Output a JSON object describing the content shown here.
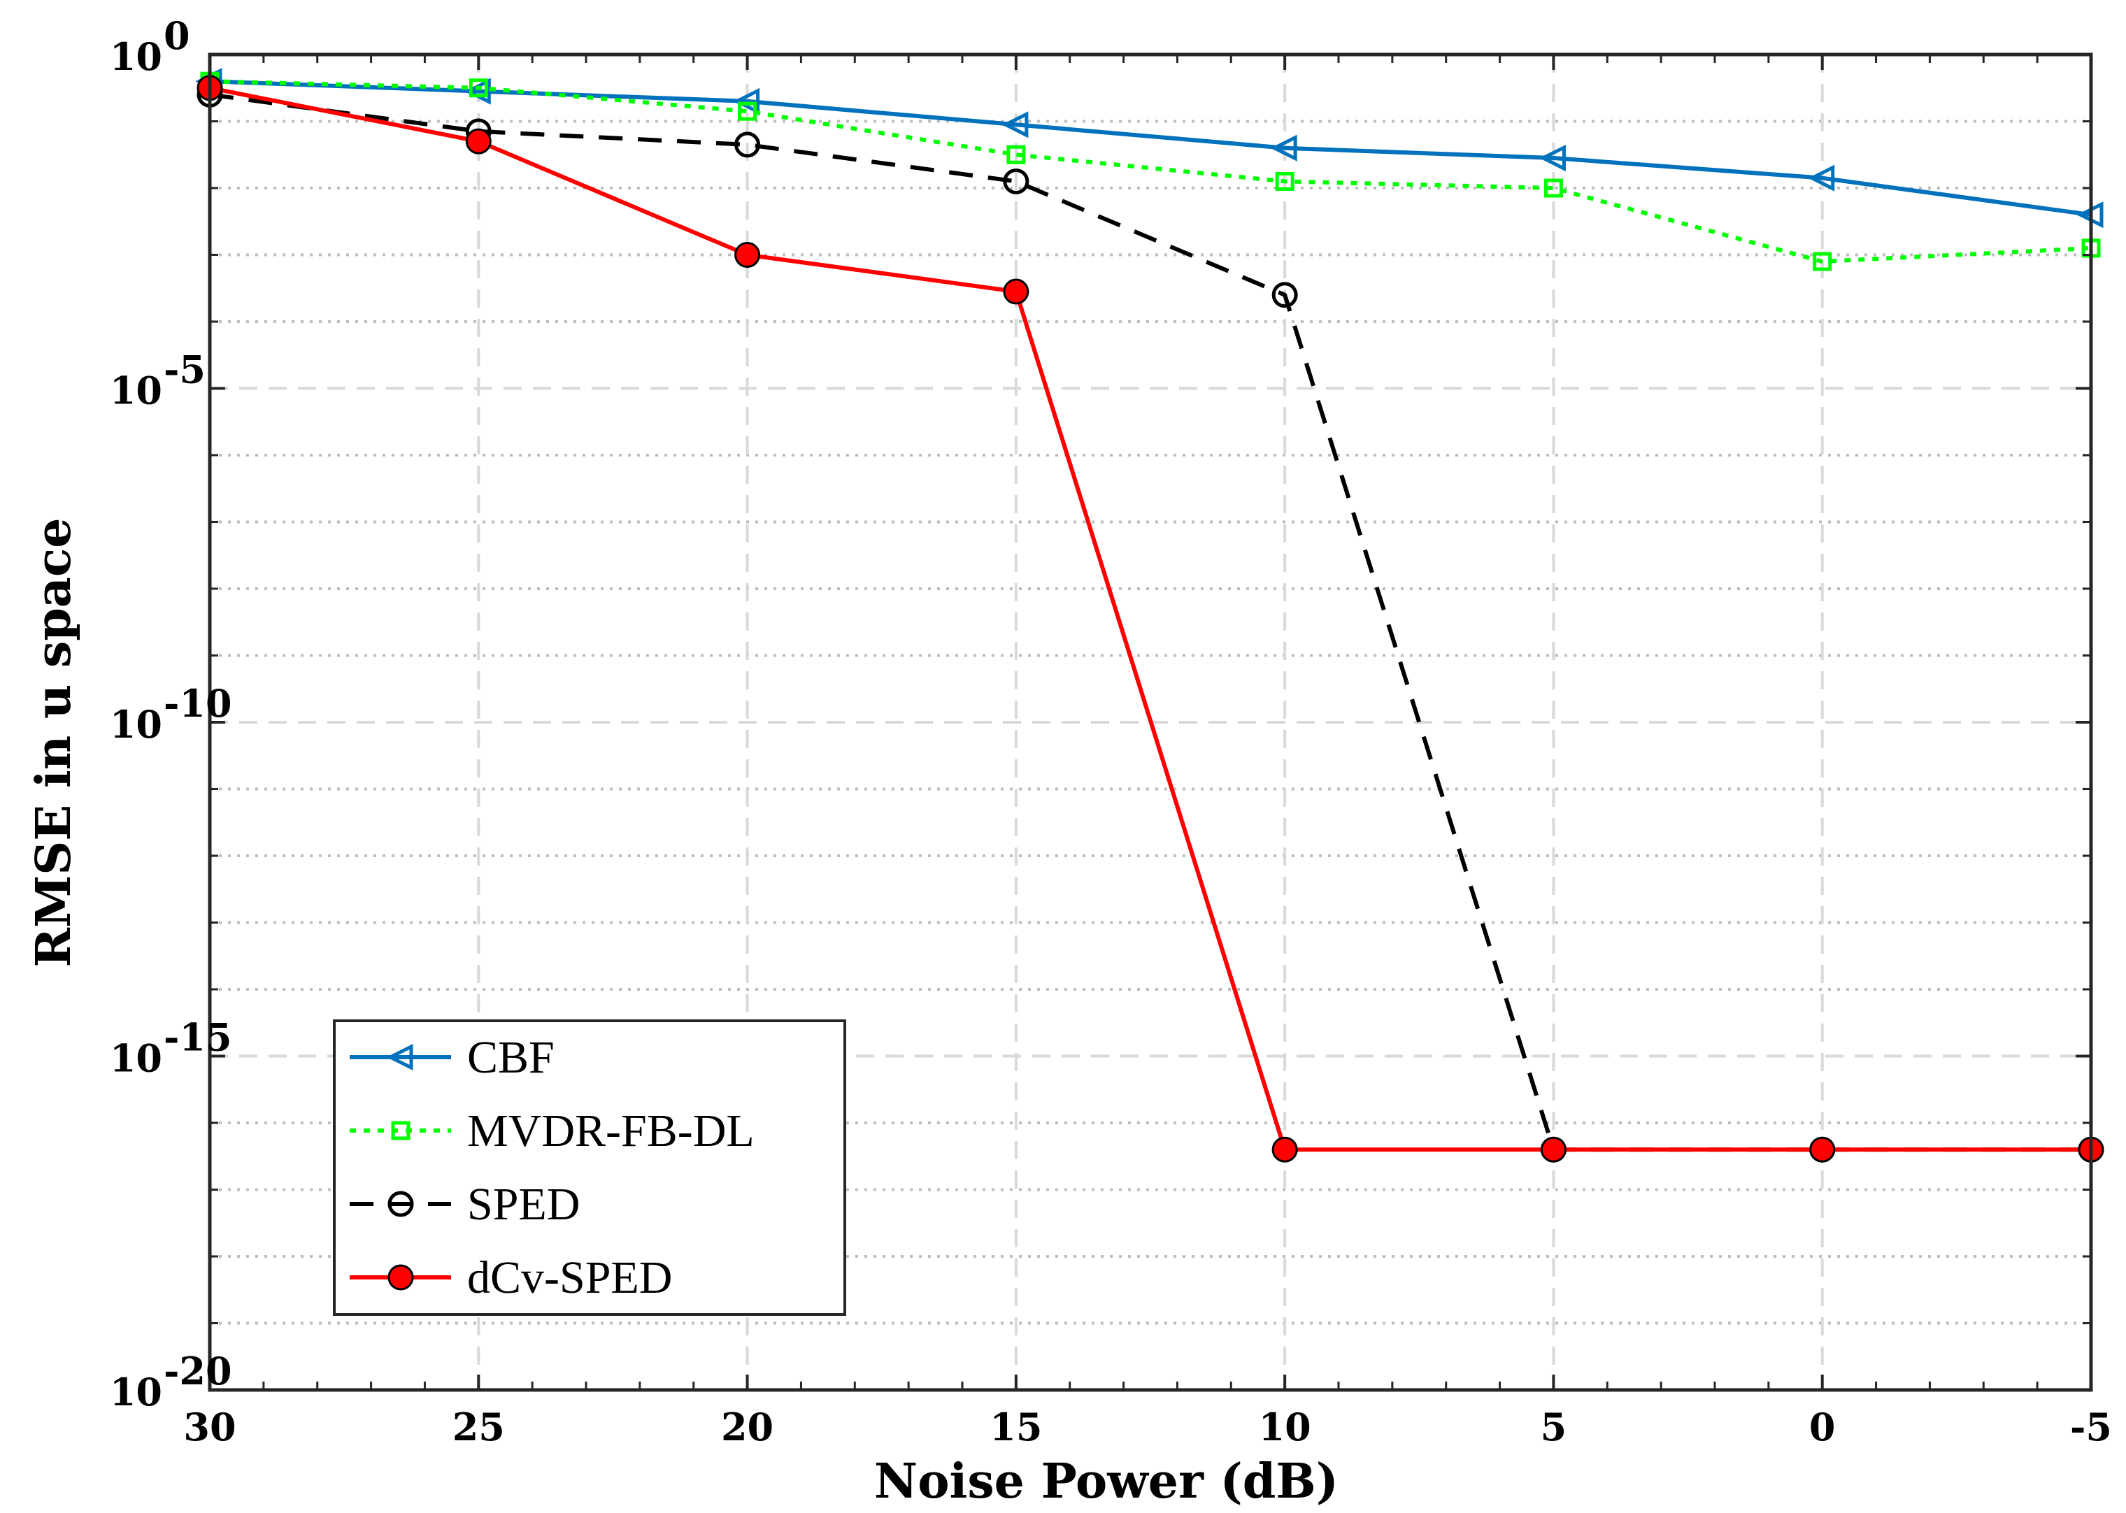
{
  "chart_data": {
    "type": "line",
    "title": "",
    "xlabel": "Noise Power (dB)",
    "ylabel": "RMSE in u space",
    "x": [
      30,
      25,
      20,
      15,
      10,
      5,
      0,
      -5
    ],
    "x_ticks": [
      "30",
      "25",
      "20",
      "15",
      "10",
      "5",
      "0",
      "-5"
    ],
    "x_reversed": true,
    "xlim": [
      30,
      -5
    ],
    "yscale": "log",
    "ylim_exp": [
      -20,
      0
    ],
    "y_ticks": [
      {
        "base": "10",
        "exp": "0",
        "value_exp": 0
      },
      {
        "base": "10",
        "exp": "-5",
        "value_exp": -5
      },
      {
        "base": "10",
        "exp": "-10",
        "value_exp": -10
      },
      {
        "base": "10",
        "exp": "-15",
        "value_exp": -15
      },
      {
        "base": "10",
        "exp": "-20",
        "value_exp": -20
      }
    ],
    "grid": true,
    "legend_position": "bottom-left",
    "series": [
      {
        "name": "CBF",
        "color": "#0072BD",
        "line": "solid",
        "marker": "triangle-left",
        "log10_values": [
          -0.4,
          -0.55,
          -0.7,
          -1.05,
          -1.4,
          -1.55,
          -1.85,
          -2.4
        ]
      },
      {
        "name": "MVDR-FB-DL",
        "color": "#00FF00",
        "line": "dotted",
        "marker": "square",
        "log10_values": [
          -0.4,
          -0.5,
          -0.85,
          -1.5,
          -1.9,
          -2.0,
          -3.1,
          -2.9
        ]
      },
      {
        "name": "SPED",
        "color": "#000000",
        "line": "dashed",
        "marker": "circle-open",
        "log10_values": [
          -0.6,
          -1.15,
          -1.35,
          -1.9,
          -3.6,
          -16.4,
          -16.4,
          -16.4
        ]
      },
      {
        "name": "dCv-SPED",
        "color": "#FF0000",
        "line": "solid",
        "marker": "circle-filled",
        "log10_values": [
          -0.5,
          -1.3,
          -3.0,
          -3.55,
          -16.4,
          -16.4,
          -16.4,
          -16.4
        ]
      }
    ]
  }
}
